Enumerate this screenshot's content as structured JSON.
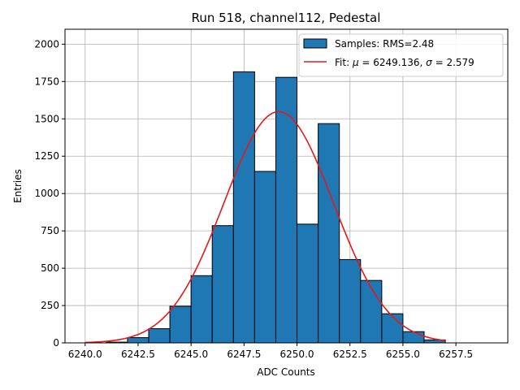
{
  "chart_data": {
    "type": "bar",
    "title": "Run 518, channel112, Pedestal",
    "xlabel": "ADC Counts",
    "ylabel": "Entries",
    "xlim": [
      6239.05,
      6259.95
    ],
    "ylim": [
      0,
      2100
    ],
    "xticks": [
      6240.0,
      6242.5,
      6245.0,
      6247.5,
      6250.0,
      6252.5,
      6255.0,
      6257.5
    ],
    "xtick_labels": [
      "6240.0",
      "6242.5",
      "6245.0",
      "6247.5",
      "6250.0",
      "6252.5",
      "6255.0",
      "6257.5"
    ],
    "yticks": [
      0,
      250,
      500,
      750,
      1000,
      1250,
      1500,
      1750,
      2000
    ],
    "ytick_labels": [
      "0",
      "250",
      "500",
      "750",
      "1000",
      "1250",
      "1500",
      "1750",
      "2000"
    ],
    "grid": true,
    "legend_position": "top-right",
    "bins": {
      "edges": [
        6240,
        6241,
        6242,
        6243,
        6244,
        6245,
        6246,
        6247,
        6248,
        6249,
        6250,
        6251,
        6252,
        6253,
        6254,
        6255,
        6256,
        6257
      ],
      "counts": [
        0,
        5,
        35,
        95,
        245,
        450,
        785,
        1815,
        1148,
        1778,
        795,
        1468,
        558,
        418,
        195,
        75,
        20
      ]
    },
    "fit": {
      "type": "gaussian",
      "mu": 6249.136,
      "sigma": 2.579,
      "amplitude": 1548,
      "x_range": [
        6240,
        6257
      ]
    },
    "series": [
      {
        "name": "Samples: RMS=2.48",
        "kind": "histogram",
        "color": "#1f77b4"
      },
      {
        "name": "Fit: μ = 6249.136, σ = 2.579",
        "kind": "line",
        "color": "#e31a1c"
      }
    ],
    "legend": {
      "samples_label": "Samples: RMS=2.48",
      "fit_prefix": "Fit: ",
      "mu_symbol": "μ",
      "mu_value": " = 6249.136, ",
      "sigma_symbol": "σ",
      "sigma_value": " = 2.579"
    }
  }
}
